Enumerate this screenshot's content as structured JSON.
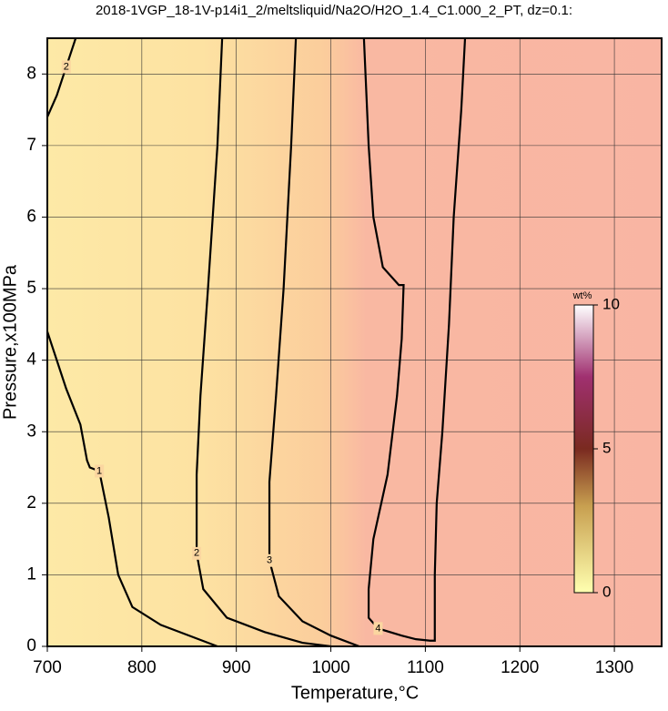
{
  "chart_data": {
    "type": "contour",
    "title": "2018-1VGP_18-1V-p14i1_2/meltsliquid/Na2O/H2O_1.4_C1.000_2_PT, dz=0.1:",
    "x_label": "Temperature,°C",
    "y_label": "Pressure,x100MPa",
    "xlim": [
      700,
      1350
    ],
    "ylim": [
      0,
      8.5
    ],
    "xticks": [
      700,
      800,
      900,
      1000,
      1100,
      1200,
      1300
    ],
    "yticks": [
      0,
      1,
      2,
      3,
      4,
      5,
      6,
      7,
      8
    ],
    "grid": true,
    "contours": [
      {
        "level": 1,
        "x": [
          700,
          710,
          720,
          735,
          742,
          745,
          755,
          765,
          775,
          790,
          820,
          860,
          880
        ],
        "y": [
          4.4,
          4.0,
          3.6,
          3.1,
          2.6,
          2.5,
          2.45,
          1.8,
          1.0,
          0.55,
          0.3,
          0.1,
          0.0
        ]
      },
      {
        "level": 2,
        "x": [
          885,
          880,
          870,
          862,
          858,
          858,
          865,
          890,
          930,
          970,
          1000
        ],
        "y": [
          8.5,
          7.0,
          5.0,
          3.5,
          2.4,
          1.3,
          0.8,
          0.4,
          0.2,
          0.05,
          0.0
        ]
      },
      {
        "level": 2,
        "x": [
          700,
          710,
          720,
          730
        ],
        "y": [
          7.4,
          7.7,
          8.1,
          8.5
        ]
      },
      {
        "level": 3,
        "x": [
          963,
          958,
          950,
          942,
          935,
          935,
          945,
          970,
          1000,
          1030
        ],
        "y": [
          8.5,
          7.0,
          5.0,
          3.5,
          2.3,
          1.2,
          0.7,
          0.35,
          0.15,
          0.0
        ]
      },
      {
        "level": 4,
        "x": [
          1035,
          1040,
          1045,
          1055,
          1072,
          1077,
          1075,
          1070,
          1060,
          1045,
          1040,
          1040,
          1050,
          1075,
          1090,
          1105,
          1110,
          1110,
          1110,
          1112,
          1118,
          1125,
          1130,
          1138,
          1142
        ],
        "y": [
          8.5,
          7.0,
          6.0,
          5.3,
          5.05,
          5.05,
          4.3,
          3.5,
          2.4,
          1.5,
          0.8,
          0.4,
          0.25,
          0.15,
          0.1,
          0.08,
          0.08,
          0.3,
          1.0,
          2.0,
          3.0,
          4.5,
          6.0,
          7.5,
          8.5
        ]
      }
    ],
    "colorbar": {
      "label": "wt%",
      "lim": [
        0,
        10
      ],
      "ticks": [
        0,
        5,
        10
      ]
    }
  }
}
